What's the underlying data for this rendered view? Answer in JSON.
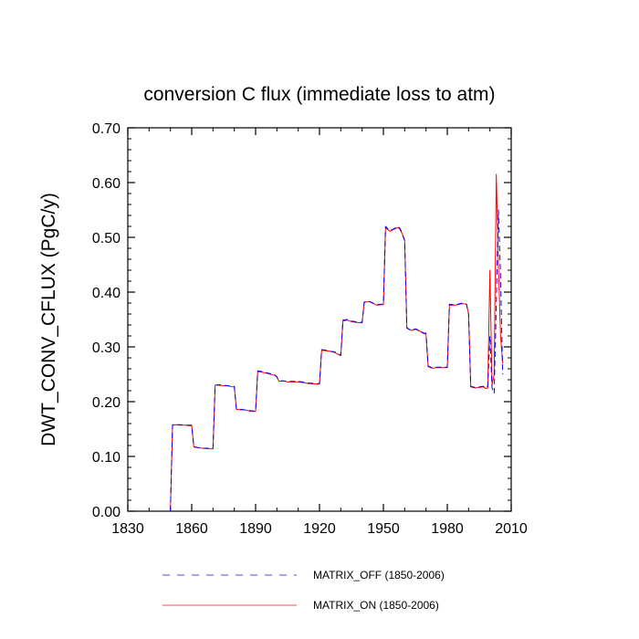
{
  "chart_data": {
    "type": "line",
    "title": "conversion C flux (immediate loss to atm)",
    "xlabel": "",
    "ylabel": "DWT_CONV_CFLUX  (PgC/y)",
    "xlim": [
      1830,
      2010
    ],
    "ylim": [
      0.0,
      0.7
    ],
    "xticks": [
      1830,
      1860,
      1890,
      1920,
      1950,
      1980,
      2010
    ],
    "xtick_labels": [
      "1830",
      "1860",
      "1890",
      "1920",
      "1950",
      "1980",
      "2010"
    ],
    "yticks": [
      0,
      0.1,
      0.2,
      0.3,
      0.4,
      0.5,
      0.6,
      0.7
    ],
    "ytick_labels": [
      "0.00",
      "0.10",
      "0.20",
      "0.30",
      "0.40",
      "0.50",
      "0.60",
      "0.70"
    ],
    "grid": false,
    "legend_position": "bottom",
    "series": [
      {
        "name": "MATRIX_OFF (1850-2006)",
        "color": "#0000ff",
        "style": "dashed",
        "x": [
          1850,
          1851,
          1853,
          1855,
          1857,
          1859,
          1860,
          1861,
          1863,
          1865,
          1868,
          1870,
          1871,
          1873,
          1875,
          1877,
          1879,
          1880,
          1881,
          1883,
          1885,
          1887,
          1889,
          1890,
          1891,
          1893,
          1895,
          1897,
          1899,
          1900,
          1901,
          1903,
          1905,
          1907,
          1910,
          1912,
          1915,
          1919,
          1920,
          1921,
          1923,
          1925,
          1927,
          1929,
          1930,
          1931,
          1933,
          1935,
          1937,
          1939,
          1940,
          1941,
          1943,
          1945,
          1947,
          1949,
          1950,
          1951,
          1953,
          1955,
          1957,
          1958,
          1959,
          1960,
          1961,
          1963,
          1965,
          1967,
          1969,
          1970,
          1971,
          1973,
          1975,
          1977,
          1979,
          1980,
          1981,
          1983,
          1985,
          1987,
          1989,
          1990,
          1991,
          1993,
          1995,
          1997,
          1998,
          1999,
          2000,
          2001,
          2002,
          2003,
          2004,
          2005,
          2006
        ],
        "values": [
          0.0,
          0.158,
          0.158,
          0.158,
          0.157,
          0.157,
          0.157,
          0.118,
          0.116,
          0.115,
          0.115,
          0.115,
          0.23,
          0.231,
          0.23,
          0.229,
          0.228,
          0.228,
          0.186,
          0.186,
          0.185,
          0.184,
          0.183,
          0.183,
          0.256,
          0.255,
          0.253,
          0.251,
          0.249,
          0.245,
          0.238,
          0.238,
          0.237,
          0.237,
          0.237,
          0.236,
          0.234,
          0.233,
          0.233,
          0.295,
          0.294,
          0.292,
          0.291,
          0.287,
          0.285,
          0.349,
          0.35,
          0.347,
          0.346,
          0.345,
          0.345,
          0.382,
          0.384,
          0.38,
          0.377,
          0.378,
          0.378,
          0.52,
          0.512,
          0.516,
          0.52,
          0.515,
          0.505,
          0.495,
          0.335,
          0.33,
          0.333,
          0.33,
          0.325,
          0.325,
          0.265,
          0.262,
          0.263,
          0.263,
          0.263,
          0.263,
          0.378,
          0.377,
          0.378,
          0.38,
          0.378,
          0.36,
          0.228,
          0.226,
          0.227,
          0.228,
          0.225,
          0.228,
          0.32,
          0.225,
          0.215,
          0.38,
          0.55,
          0.43,
          0.25
        ]
      },
      {
        "name": "MATRIX_ON (1850-2006)",
        "color": "#ff0000",
        "style": "solid",
        "x": [
          1850,
          1851,
          1853,
          1855,
          1857,
          1859,
          1860,
          1861,
          1863,
          1865,
          1868,
          1870,
          1871,
          1873,
          1875,
          1877,
          1879,
          1880,
          1881,
          1883,
          1885,
          1887,
          1889,
          1890,
          1891,
          1893,
          1895,
          1897,
          1899,
          1900,
          1901,
          1903,
          1905,
          1907,
          1910,
          1912,
          1915,
          1919,
          1920,
          1921,
          1923,
          1925,
          1927,
          1929,
          1930,
          1931,
          1933,
          1935,
          1937,
          1939,
          1940,
          1941,
          1943,
          1945,
          1947,
          1949,
          1950,
          1951,
          1953,
          1955,
          1957,
          1958,
          1959,
          1960,
          1961,
          1963,
          1965,
          1967,
          1969,
          1970,
          1971,
          1973,
          1975,
          1977,
          1979,
          1980,
          1981,
          1983,
          1985,
          1987,
          1989,
          1990,
          1991,
          1993,
          1995,
          1997,
          1998,
          1999,
          2000,
          2001,
          2002,
          2003,
          2004,
          2005,
          2006
        ],
        "values": [
          0.0,
          0.157,
          0.158,
          0.157,
          0.157,
          0.156,
          0.156,
          0.117,
          0.116,
          0.115,
          0.114,
          0.114,
          0.23,
          0.23,
          0.229,
          0.229,
          0.227,
          0.227,
          0.186,
          0.185,
          0.185,
          0.183,
          0.182,
          0.182,
          0.255,
          0.254,
          0.252,
          0.25,
          0.248,
          0.245,
          0.237,
          0.238,
          0.236,
          0.236,
          0.236,
          0.235,
          0.233,
          0.232,
          0.232,
          0.294,
          0.293,
          0.292,
          0.29,
          0.286,
          0.284,
          0.347,
          0.349,
          0.346,
          0.345,
          0.344,
          0.344,
          0.381,
          0.383,
          0.38,
          0.376,
          0.377,
          0.377,
          0.518,
          0.511,
          0.515,
          0.518,
          0.513,
          0.505,
          0.493,
          0.334,
          0.33,
          0.332,
          0.329,
          0.324,
          0.324,
          0.264,
          0.261,
          0.262,
          0.262,
          0.262,
          0.262,
          0.376,
          0.376,
          0.377,
          0.379,
          0.378,
          0.36,
          0.227,
          0.225,
          0.226,
          0.227,
          0.224,
          0.225,
          0.44,
          0.23,
          0.25,
          0.615,
          0.45,
          0.32,
          0.27
        ]
      }
    ]
  }
}
